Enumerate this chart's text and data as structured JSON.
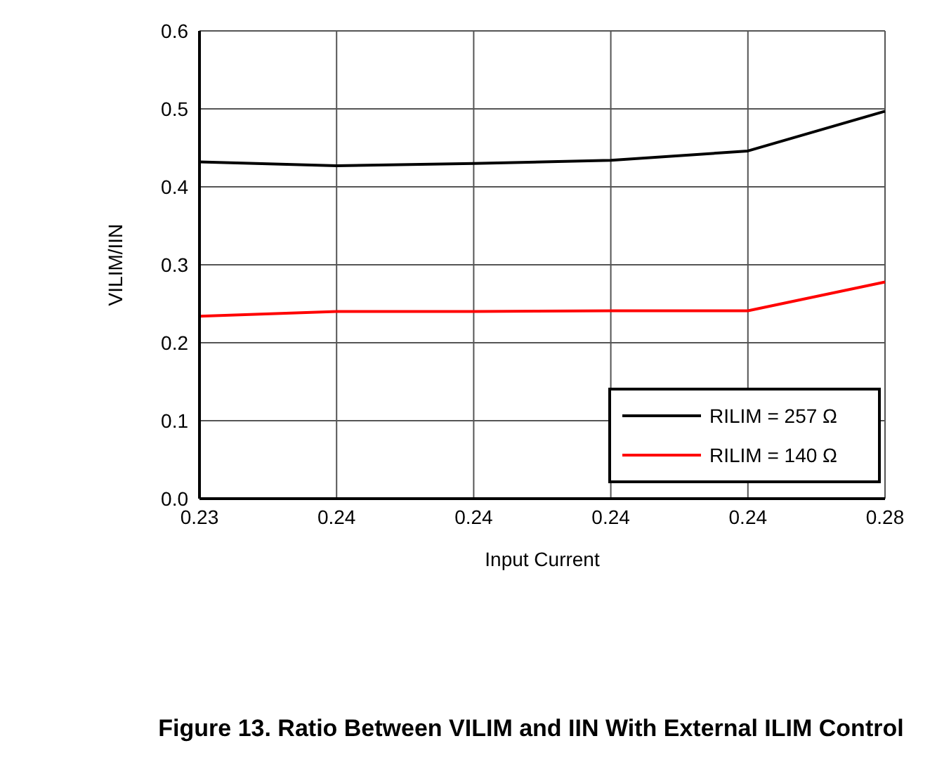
{
  "chart_data": {
    "type": "line",
    "title": "Figure 13. Ratio Between VILIM and IIN With External ILIM Control",
    "xlabel": "Input Current",
    "ylabel": "VILIM/IIN",
    "categories": [
      "0.23",
      "0.24",
      "0.24",
      "0.24",
      "0.24",
      "0.28"
    ],
    "series": [
      {
        "name": "RILIM = 257 Ω",
        "color": "#000000",
        "values": [
          0.432,
          0.427,
          0.43,
          0.434,
          0.446,
          0.497
        ]
      },
      {
        "name": "RILIM = 140 Ω",
        "color": "#ff0000",
        "values": [
          0.234,
          0.24,
          0.24,
          0.241,
          0.241,
          0.278
        ]
      }
    ],
    "ylim": [
      0,
      0.6
    ],
    "yticks": [
      {
        "value": 0,
        "label": "0.0"
      },
      0.1,
      0.2,
      0.3,
      0.4,
      0.5,
      0.6
    ],
    "grid": true,
    "legend": "bottom right",
    "marker": "none",
    "line_style": "solid"
  }
}
